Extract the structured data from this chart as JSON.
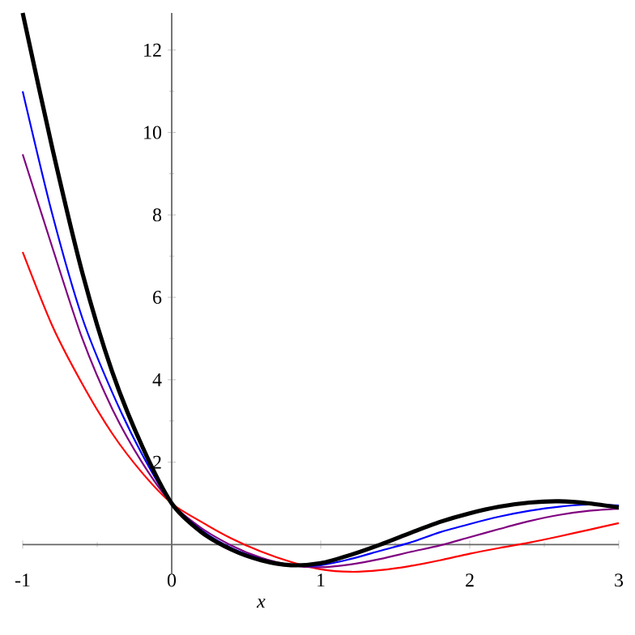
{
  "chart_data": {
    "type": "line",
    "xlabel": "x",
    "x": [
      -1,
      -0.8,
      -0.6,
      -0.4,
      -0.2,
      0,
      0.2,
      0.4,
      0.6,
      0.8,
      1.0,
      1.2,
      1.4,
      1.6,
      1.8,
      2.0,
      2.2,
      2.4,
      2.6,
      2.8,
      3.0
    ],
    "series": [
      {
        "color": "#ff0000",
        "values": [
          7.1,
          5.3,
          3.9,
          2.7,
          1.75,
          1,
          0.55,
          0.15,
          -0.17,
          -0.42,
          -0.6,
          -0.66,
          -0.62,
          -0.52,
          -0.38,
          -0.22,
          -0.08,
          0.05,
          0.2,
          0.36,
          0.52
        ]
      },
      {
        "color": "#800080",
        "values": [
          9.47,
          7.2,
          5.0,
          3.3,
          2.0,
          1,
          0.4,
          -0.02,
          -0.32,
          -0.5,
          -0.55,
          -0.48,
          -0.35,
          -0.18,
          -0.02,
          0.18,
          0.38,
          0.57,
          0.72,
          0.82,
          0.87
        ]
      },
      {
        "color": "#0000ff",
        "values": [
          11.0,
          8.0,
          5.5,
          3.7,
          2.2,
          1,
          0.35,
          -0.08,
          -0.35,
          -0.5,
          -0.5,
          -0.35,
          -0.15,
          0.05,
          0.3,
          0.5,
          0.68,
          0.82,
          0.92,
          0.97,
          0.95
        ]
      },
      {
        "color": "#000000",
        "values": [
          12.9,
          9.6,
          6.6,
          4.2,
          2.4,
          1,
          0.3,
          -0.12,
          -0.38,
          -0.5,
          -0.45,
          -0.25,
          0,
          0.28,
          0.55,
          0.76,
          0.92,
          1.02,
          1.05,
          1.0,
          0.9
        ]
      }
    ],
    "xlim": [
      -1,
      3
    ],
    "ylim": [
      -0.7,
      12.9
    ],
    "xticks": [
      -1,
      0,
      1,
      2,
      3
    ],
    "yticks": [
      2,
      4,
      6,
      8,
      10,
      12
    ],
    "grid": false,
    "marker": "none",
    "line_style": "solid"
  }
}
